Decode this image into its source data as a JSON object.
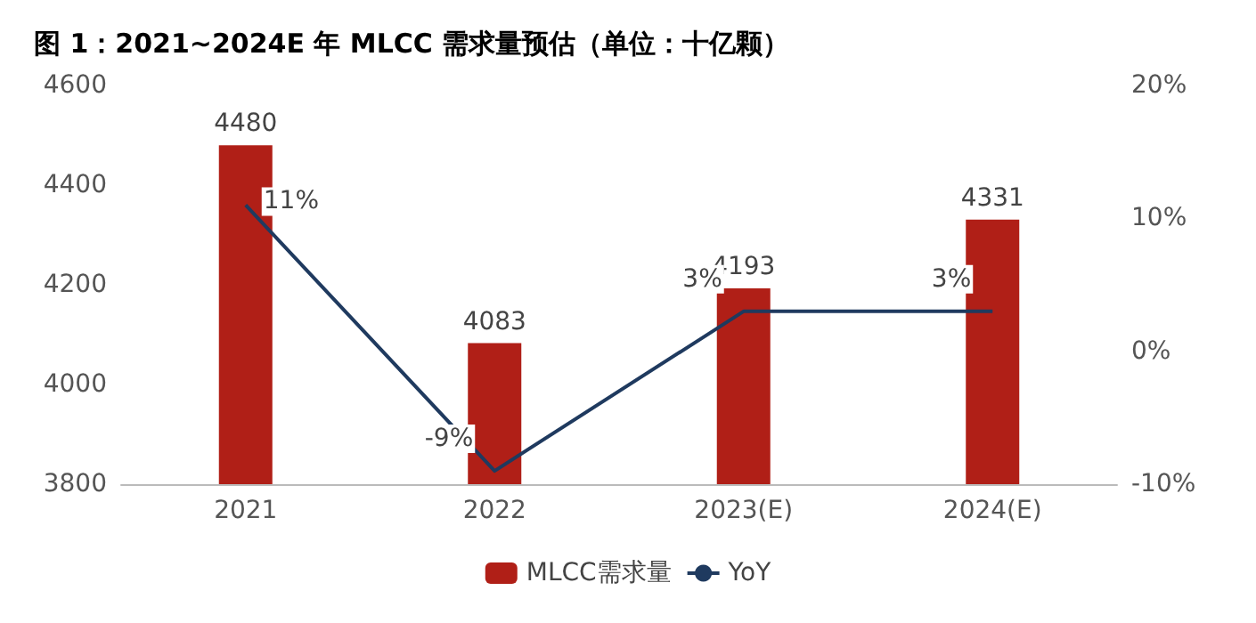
{
  "chart_data": {
    "type": "bar",
    "title": "图 1：2021~2024E 年 MLCC 需求量预估（单位：十亿颗）",
    "categories": [
      "2021",
      "2022",
      "2023(E)",
      "2024(E)"
    ],
    "series": [
      {
        "name": "MLCC需求量",
        "color": "#b01f17",
        "values": [
          4480,
          4083,
          4193,
          4331
        ]
      },
      {
        "name": "YoY",
        "type": "line",
        "axis": "y2",
        "color": "#1f3a5f",
        "values": [
          11,
          -9,
          3,
          3
        ],
        "value_labels": [
          "11%",
          "-9%",
          "3%",
          "3%"
        ]
      }
    ],
    "ylim": [
      3800,
      4600
    ],
    "yticks": [
      3800,
      4000,
      4200,
      4400,
      4600
    ],
    "y2lim": [
      -10,
      20
    ],
    "y2ticks": [
      {
        "value": -10,
        "label": "-10%"
      },
      {
        "value": 0,
        "label": "0%"
      },
      {
        "value": 10,
        "label": "10%"
      },
      {
        "value": 20,
        "label": "20%"
      }
    ],
    "data_labels": true,
    "grid": false,
    "legend": "bottom",
    "marker": "none",
    "line_style": "solid"
  }
}
